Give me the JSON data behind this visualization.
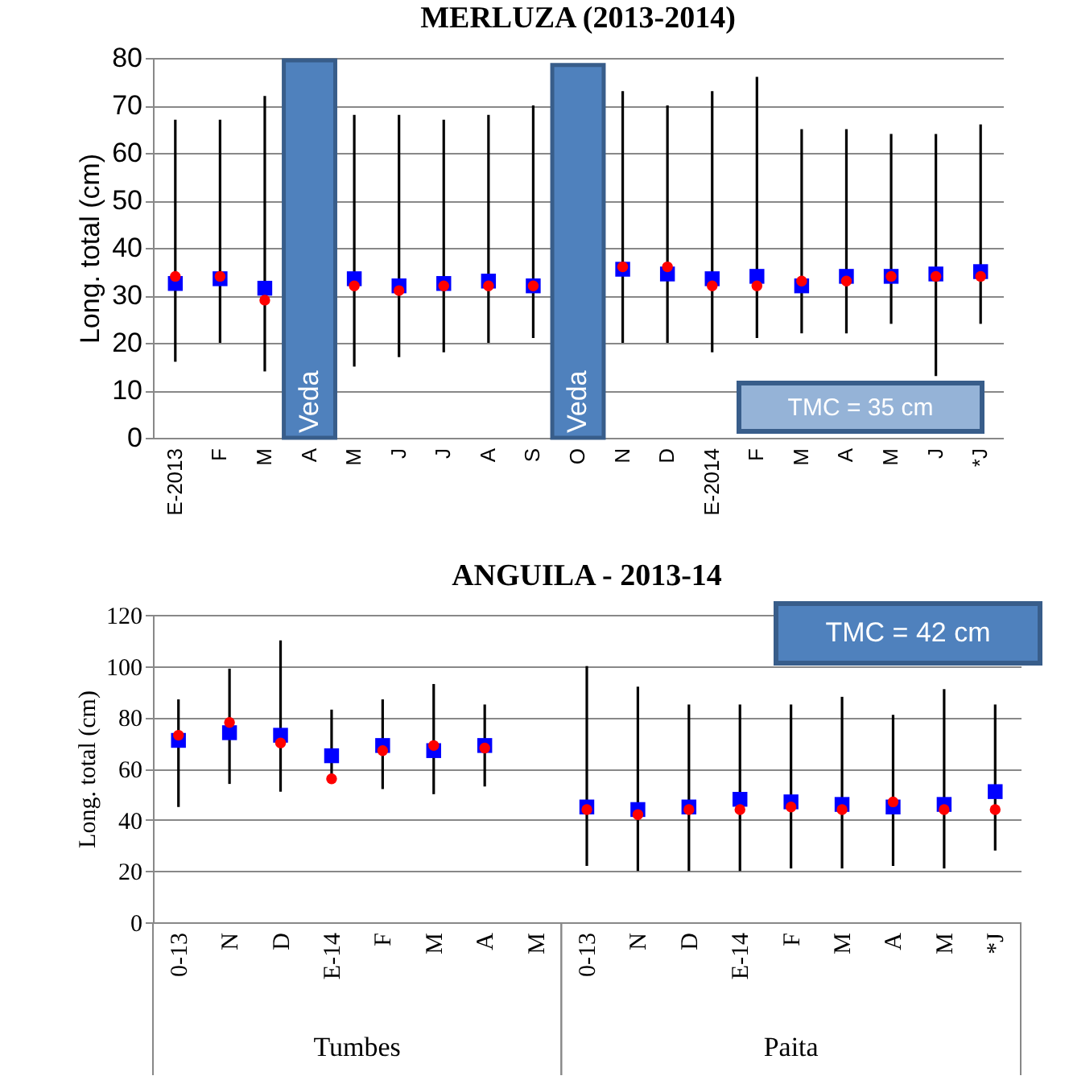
{
  "chart_data": [
    {
      "type": "scatter",
      "title": "MERLUZA (2013-2014)",
      "ylabel": "Long. total (cm)",
      "categories": [
        "E-2013",
        "F",
        "M",
        "A",
        "M",
        "J",
        "J",
        "A",
        "S",
        "O",
        "N",
        "D",
        "E-2014",
        "F",
        "M",
        "A",
        "M",
        "J",
        "*J"
      ],
      "ylim": [
        0,
        80
      ],
      "yticks": [
        0,
        10,
        20,
        30,
        40,
        50,
        60,
        70,
        80
      ],
      "grid": "y",
      "annotations": [
        "TMC = 35 cm"
      ],
      "series": [
        {
          "type": "bar",
          "color": "#4f81bd",
          "values": [
            null,
            null,
            null,
            79.5,
            null,
            null,
            null,
            null,
            null,
            78.5,
            null,
            null,
            null,
            null,
            null,
            null,
            null,
            null,
            null
          ],
          "value_labels": [
            null,
            null,
            null,
            "Veda",
            null,
            null,
            null,
            null,
            null,
            "Veda",
            null,
            null,
            null,
            null,
            null,
            null,
            null,
            null,
            null
          ]
        },
        {
          "color": "#0000ff",
          "marker": "square",
          "values": [
            32.5,
            33.5,
            31.5,
            null,
            33.5,
            32,
            32.5,
            33,
            32,
            null,
            35.5,
            34.5,
            33.5,
            34,
            32,
            34,
            34,
            34.5,
            35
          ],
          "errors": [
            [
              16,
              67
            ],
            [
              20,
              67
            ],
            [
              14,
              72
            ],
            null,
            [
              15,
              68
            ],
            [
              17,
              68
            ],
            [
              18,
              67
            ],
            [
              20,
              68
            ],
            [
              21,
              70
            ],
            null,
            [
              20,
              73
            ],
            [
              20,
              70
            ],
            [
              18,
              73
            ],
            [
              21,
              76
            ],
            [
              22,
              65
            ],
            [
              22,
              65
            ],
            [
              24,
              64
            ],
            [
              13,
              64
            ],
            [
              24,
              66
            ]
          ]
        },
        {
          "color": "#ff0000",
          "marker": "circle",
          "values": [
            34,
            34,
            29,
            null,
            32,
            31,
            32,
            32,
            32,
            null,
            36,
            36,
            32,
            32,
            33,
            33,
            34,
            34,
            34
          ]
        }
      ]
    },
    {
      "type": "scatter",
      "title": "ANGUILA - 2013-14",
      "ylabel": "Long. total (cm)",
      "categories": [
        "0-13",
        "N",
        "D",
        "E-14",
        "F",
        "M",
        "A",
        "M",
        "0-13",
        "N",
        "D",
        "E-14",
        "F",
        "M",
        "A",
        "M",
        "*J"
      ],
      "ylim": [
        0,
        120
      ],
      "yticks": [
        0,
        20,
        40,
        60,
        80,
        100,
        120
      ],
      "grid": "y",
      "annotations": [
        "TMC = 42 cm",
        "Tumbes",
        "Paita"
      ],
      "series": [
        {
          "color": "#0000ff",
          "marker": "square",
          "values": [
            71,
            74,
            73,
            65,
            69,
            67,
            69,
            null,
            45,
            44,
            45,
            48,
            47,
            46,
            45,
            46,
            51
          ],
          "errors": [
            [
              45,
              87
            ],
            [
              54,
              99
            ],
            [
              51,
              110
            ],
            [
              55,
              83
            ],
            [
              52,
              87
            ],
            [
              50,
              93
            ],
            [
              53,
              85
            ],
            null,
            [
              22,
              100
            ],
            [
              20,
              92
            ],
            [
              20,
              85
            ],
            [
              20,
              85
            ],
            [
              21,
              85
            ],
            [
              21,
              88
            ],
            [
              22,
              81
            ],
            [
              21,
              91
            ],
            [
              28,
              85
            ]
          ]
        },
        {
          "color": "#ff0000",
          "marker": "circle",
          "values": [
            73,
            78,
            70,
            56,
            67,
            69,
            68,
            null,
            44,
            42,
            44,
            44,
            45,
            44,
            47,
            44,
            44
          ]
        }
      ]
    }
  ]
}
